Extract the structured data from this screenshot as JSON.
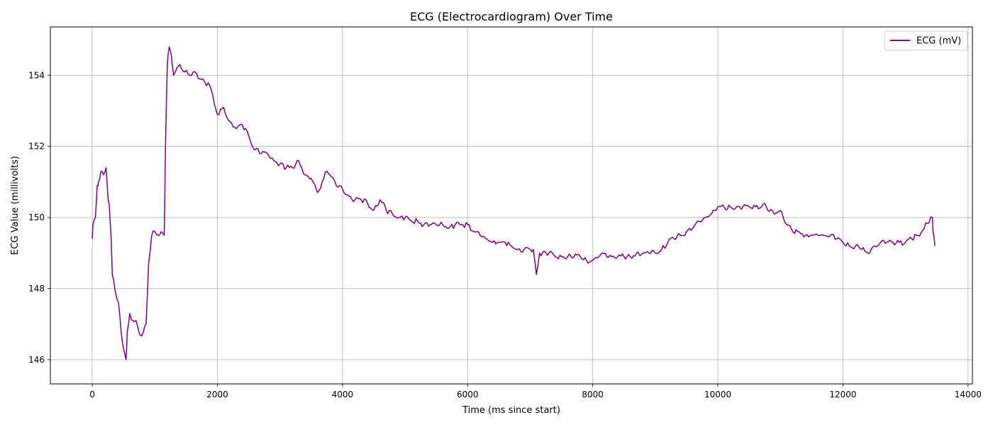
{
  "chart_data": {
    "type": "line",
    "title": "ECG (Electrocardiogram) Over Time",
    "xlabel": "Time (ms since start)",
    "ylabel": "ECG Value (millivolts)",
    "xlim": [
      -670,
      14070
    ],
    "ylim": [
      145.32,
      155.36
    ],
    "xticks": [
      0,
      2000,
      4000,
      6000,
      8000,
      10000,
      12000,
      14000
    ],
    "yticks": [
      146,
      148,
      150,
      152,
      154
    ],
    "grid": true,
    "legend_position": "top-right",
    "series": [
      {
        "name": "ECG (mV)",
        "color": "#800080",
        "points": [
          [
            0,
            149.4
          ],
          [
            10,
            149.8
          ],
          [
            50,
            150.0
          ],
          [
            80,
            150.9
          ],
          [
            100,
            151.0
          ],
          [
            140,
            151.3
          ],
          [
            180,
            151.2
          ],
          [
            220,
            151.4
          ],
          [
            250,
            150.6
          ],
          [
            270,
            150.4
          ],
          [
            300,
            149.5
          ],
          [
            320,
            148.4
          ],
          [
            360,
            148.0
          ],
          [
            420,
            147.6
          ],
          [
            460,
            146.8
          ],
          [
            500,
            146.3
          ],
          [
            540,
            146.0
          ],
          [
            560,
            146.8
          ],
          [
            600,
            147.3
          ],
          [
            650,
            147.1
          ],
          [
            700,
            147.1
          ],
          [
            760,
            146.7
          ],
          [
            820,
            146.8
          ],
          [
            860,
            147.0
          ],
          [
            900,
            148.7
          ],
          [
            950,
            149.5
          ],
          [
            1000,
            149.6
          ],
          [
            1050,
            149.5
          ],
          [
            1100,
            149.6
          ],
          [
            1150,
            149.5
          ],
          [
            1170,
            152.0
          ],
          [
            1200,
            154.3
          ],
          [
            1230,
            154.8
          ],
          [
            1260,
            154.6
          ],
          [
            1300,
            154.0
          ],
          [
            1350,
            154.2
          ],
          [
            1400,
            154.3
          ],
          [
            1480,
            154.1
          ],
          [
            1560,
            154.0
          ],
          [
            1640,
            154.1
          ],
          [
            1720,
            153.9
          ],
          [
            1800,
            153.8
          ],
          [
            1880,
            153.7
          ],
          [
            1950,
            153.2
          ],
          [
            2000,
            152.9
          ],
          [
            2100,
            153.1
          ],
          [
            2200,
            152.7
          ],
          [
            2300,
            152.5
          ],
          [
            2400,
            152.6
          ],
          [
            2500,
            152.3
          ],
          [
            2600,
            151.9
          ],
          [
            2700,
            151.8
          ],
          [
            2800,
            151.8
          ],
          [
            2900,
            151.6
          ],
          [
            3000,
            151.5
          ],
          [
            3100,
            151.4
          ],
          [
            3200,
            151.4
          ],
          [
            3300,
            151.6
          ],
          [
            3400,
            151.2
          ],
          [
            3500,
            151.1
          ],
          [
            3600,
            150.7
          ],
          [
            3700,
            151.1
          ],
          [
            3750,
            151.3
          ],
          [
            3800,
            151.2
          ],
          [
            3900,
            150.9
          ],
          [
            4000,
            150.8
          ],
          [
            4100,
            150.6
          ],
          [
            4200,
            150.5
          ],
          [
            4300,
            150.5
          ],
          [
            4400,
            150.4
          ],
          [
            4500,
            150.2
          ],
          [
            4600,
            150.5
          ],
          [
            4700,
            150.2
          ],
          [
            4800,
            150.1
          ],
          [
            4900,
            150.0
          ],
          [
            5000,
            150.0
          ],
          [
            5100,
            149.9
          ],
          [
            5200,
            149.9
          ],
          [
            5300,
            149.8
          ],
          [
            5400,
            149.8
          ],
          [
            5500,
            149.8
          ],
          [
            5600,
            149.8
          ],
          [
            5700,
            149.7
          ],
          [
            5800,
            149.8
          ],
          [
            5900,
            149.8
          ],
          [
            6000,
            149.8
          ],
          [
            6100,
            149.6
          ],
          [
            6200,
            149.5
          ],
          [
            6300,
            149.4
          ],
          [
            6400,
            149.3
          ],
          [
            6500,
            149.3
          ],
          [
            6600,
            149.3
          ],
          [
            6700,
            149.2
          ],
          [
            6800,
            149.1
          ],
          [
            6900,
            149.1
          ],
          [
            7000,
            149.1
          ],
          [
            7050,
            149.1
          ],
          [
            7100,
            148.4
          ],
          [
            7150,
            149.0
          ],
          [
            7300,
            149.0
          ],
          [
            7400,
            148.9
          ],
          [
            7500,
            148.9
          ],
          [
            7600,
            148.9
          ],
          [
            7700,
            148.9
          ],
          [
            7800,
            148.9
          ],
          [
            7900,
            148.8
          ],
          [
            8000,
            148.8
          ],
          [
            8100,
            148.9
          ],
          [
            8200,
            149.0
          ],
          [
            8300,
            148.9
          ],
          [
            8400,
            148.9
          ],
          [
            8500,
            148.9
          ],
          [
            8600,
            148.9
          ],
          [
            8700,
            149.0
          ],
          [
            8800,
            149.0
          ],
          [
            8900,
            149.0
          ],
          [
            9000,
            149.0
          ],
          [
            9100,
            149.1
          ],
          [
            9200,
            149.3
          ],
          [
            9300,
            149.4
          ],
          [
            9400,
            149.5
          ],
          [
            9500,
            149.6
          ],
          [
            9600,
            149.7
          ],
          [
            9700,
            149.9
          ],
          [
            9800,
            150.0
          ],
          [
            9900,
            150.1
          ],
          [
            10000,
            150.3
          ],
          [
            10100,
            150.3
          ],
          [
            10200,
            150.3
          ],
          [
            10300,
            150.3
          ],
          [
            10400,
            150.3
          ],
          [
            10500,
            150.3
          ],
          [
            10600,
            150.3
          ],
          [
            10700,
            150.3
          ],
          [
            10750,
            150.4
          ],
          [
            10800,
            150.2
          ],
          [
            10900,
            150.1
          ],
          [
            11000,
            150.2
          ],
          [
            11100,
            149.8
          ],
          [
            11200,
            149.6
          ],
          [
            11300,
            149.6
          ],
          [
            11400,
            149.5
          ],
          [
            11500,
            149.5
          ],
          [
            11600,
            149.5
          ],
          [
            11700,
            149.5
          ],
          [
            11800,
            149.5
          ],
          [
            11900,
            149.4
          ],
          [
            12000,
            149.3
          ],
          [
            12100,
            149.2
          ],
          [
            12200,
            149.2
          ],
          [
            12300,
            149.1
          ],
          [
            12400,
            149.0
          ],
          [
            12450,
            149.1
          ],
          [
            12500,
            149.2
          ],
          [
            12600,
            149.3
          ],
          [
            12700,
            149.3
          ],
          [
            12800,
            149.3
          ],
          [
            12900,
            149.3
          ],
          [
            13000,
            149.3
          ],
          [
            13100,
            149.4
          ],
          [
            13200,
            149.5
          ],
          [
            13300,
            149.7
          ],
          [
            13400,
            150.0
          ],
          [
            13430,
            150.0
          ],
          [
            13440,
            149.6
          ],
          [
            13470,
            149.2
          ]
        ]
      }
    ]
  }
}
